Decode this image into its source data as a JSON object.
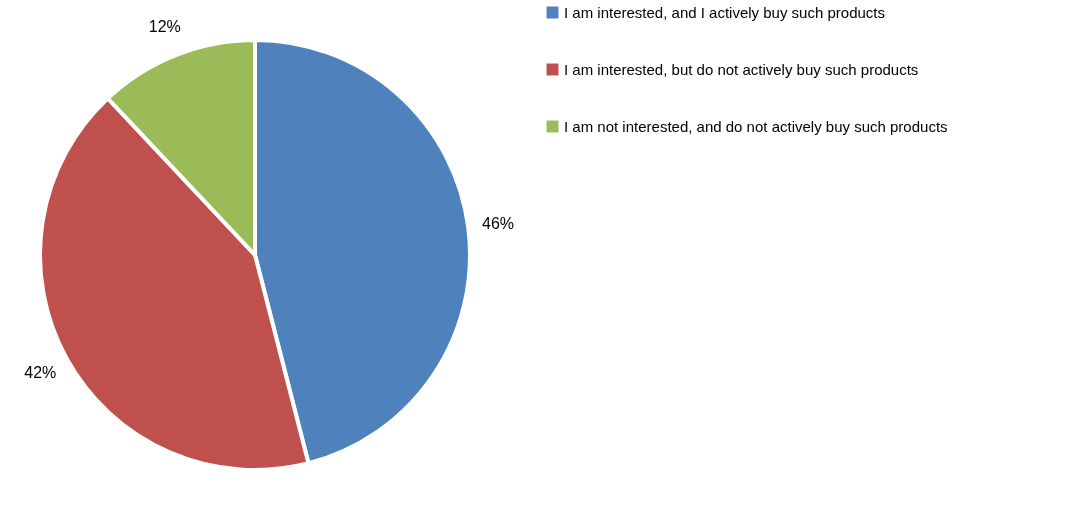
{
  "chart_data": {
    "type": "pie",
    "categories": [
      "I am interested,  and I actively buy such products",
      "I am interested,  but do not actively buy such products",
      "I am not interested,  and do not actively buy such products"
    ],
    "values": [
      46,
      42,
      12
    ],
    "colors": [
      "#4f81bd",
      "#c0504d",
      "#9bbb59"
    ],
    "value_labels": [
      "46%",
      "42%",
      "12%"
    ],
    "legend": "right"
  }
}
